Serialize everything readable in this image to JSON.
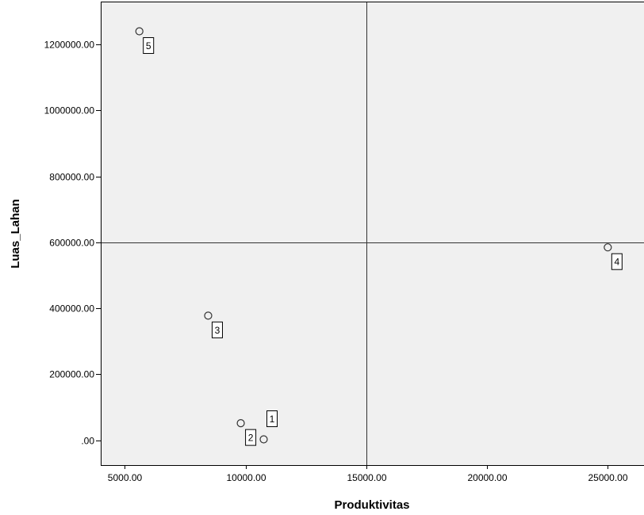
{
  "chart_data": {
    "type": "scatter",
    "title": "",
    "xlabel": "Produktivitas",
    "ylabel": "Luas_Lahan",
    "xlim": [
      4000,
      26500
    ],
    "ylim": [
      -75000,
      1330000
    ],
    "xticks": [
      5000,
      10000,
      15000,
      20000,
      25000
    ],
    "xtick_labels": [
      "5000.00",
      "10000.00",
      "15000.00",
      "20000.00",
      "25000.00"
    ],
    "yticks": [
      0,
      200000,
      400000,
      600000,
      800000,
      1000000,
      1200000
    ],
    "ytick_labels": [
      ".00",
      "200000.00",
      "400000.00",
      "600000.00",
      "800000.00",
      "1000000.00",
      "1200000.00"
    ],
    "reference_lines": {
      "x": 15000,
      "y": 600000
    },
    "grid": false,
    "plot_background": "#f0f0f0",
    "points": [
      {
        "label": "1",
        "x": 10750,
        "y": 3000
      },
      {
        "label": "2",
        "x": 9800,
        "y": 52000
      },
      {
        "label": "3",
        "x": 8450,
        "y": 378000
      },
      {
        "label": "4",
        "x": 25000,
        "y": 585000
      },
      {
        "label": "5",
        "x": 5600,
        "y": 1240000
      }
    ]
  }
}
